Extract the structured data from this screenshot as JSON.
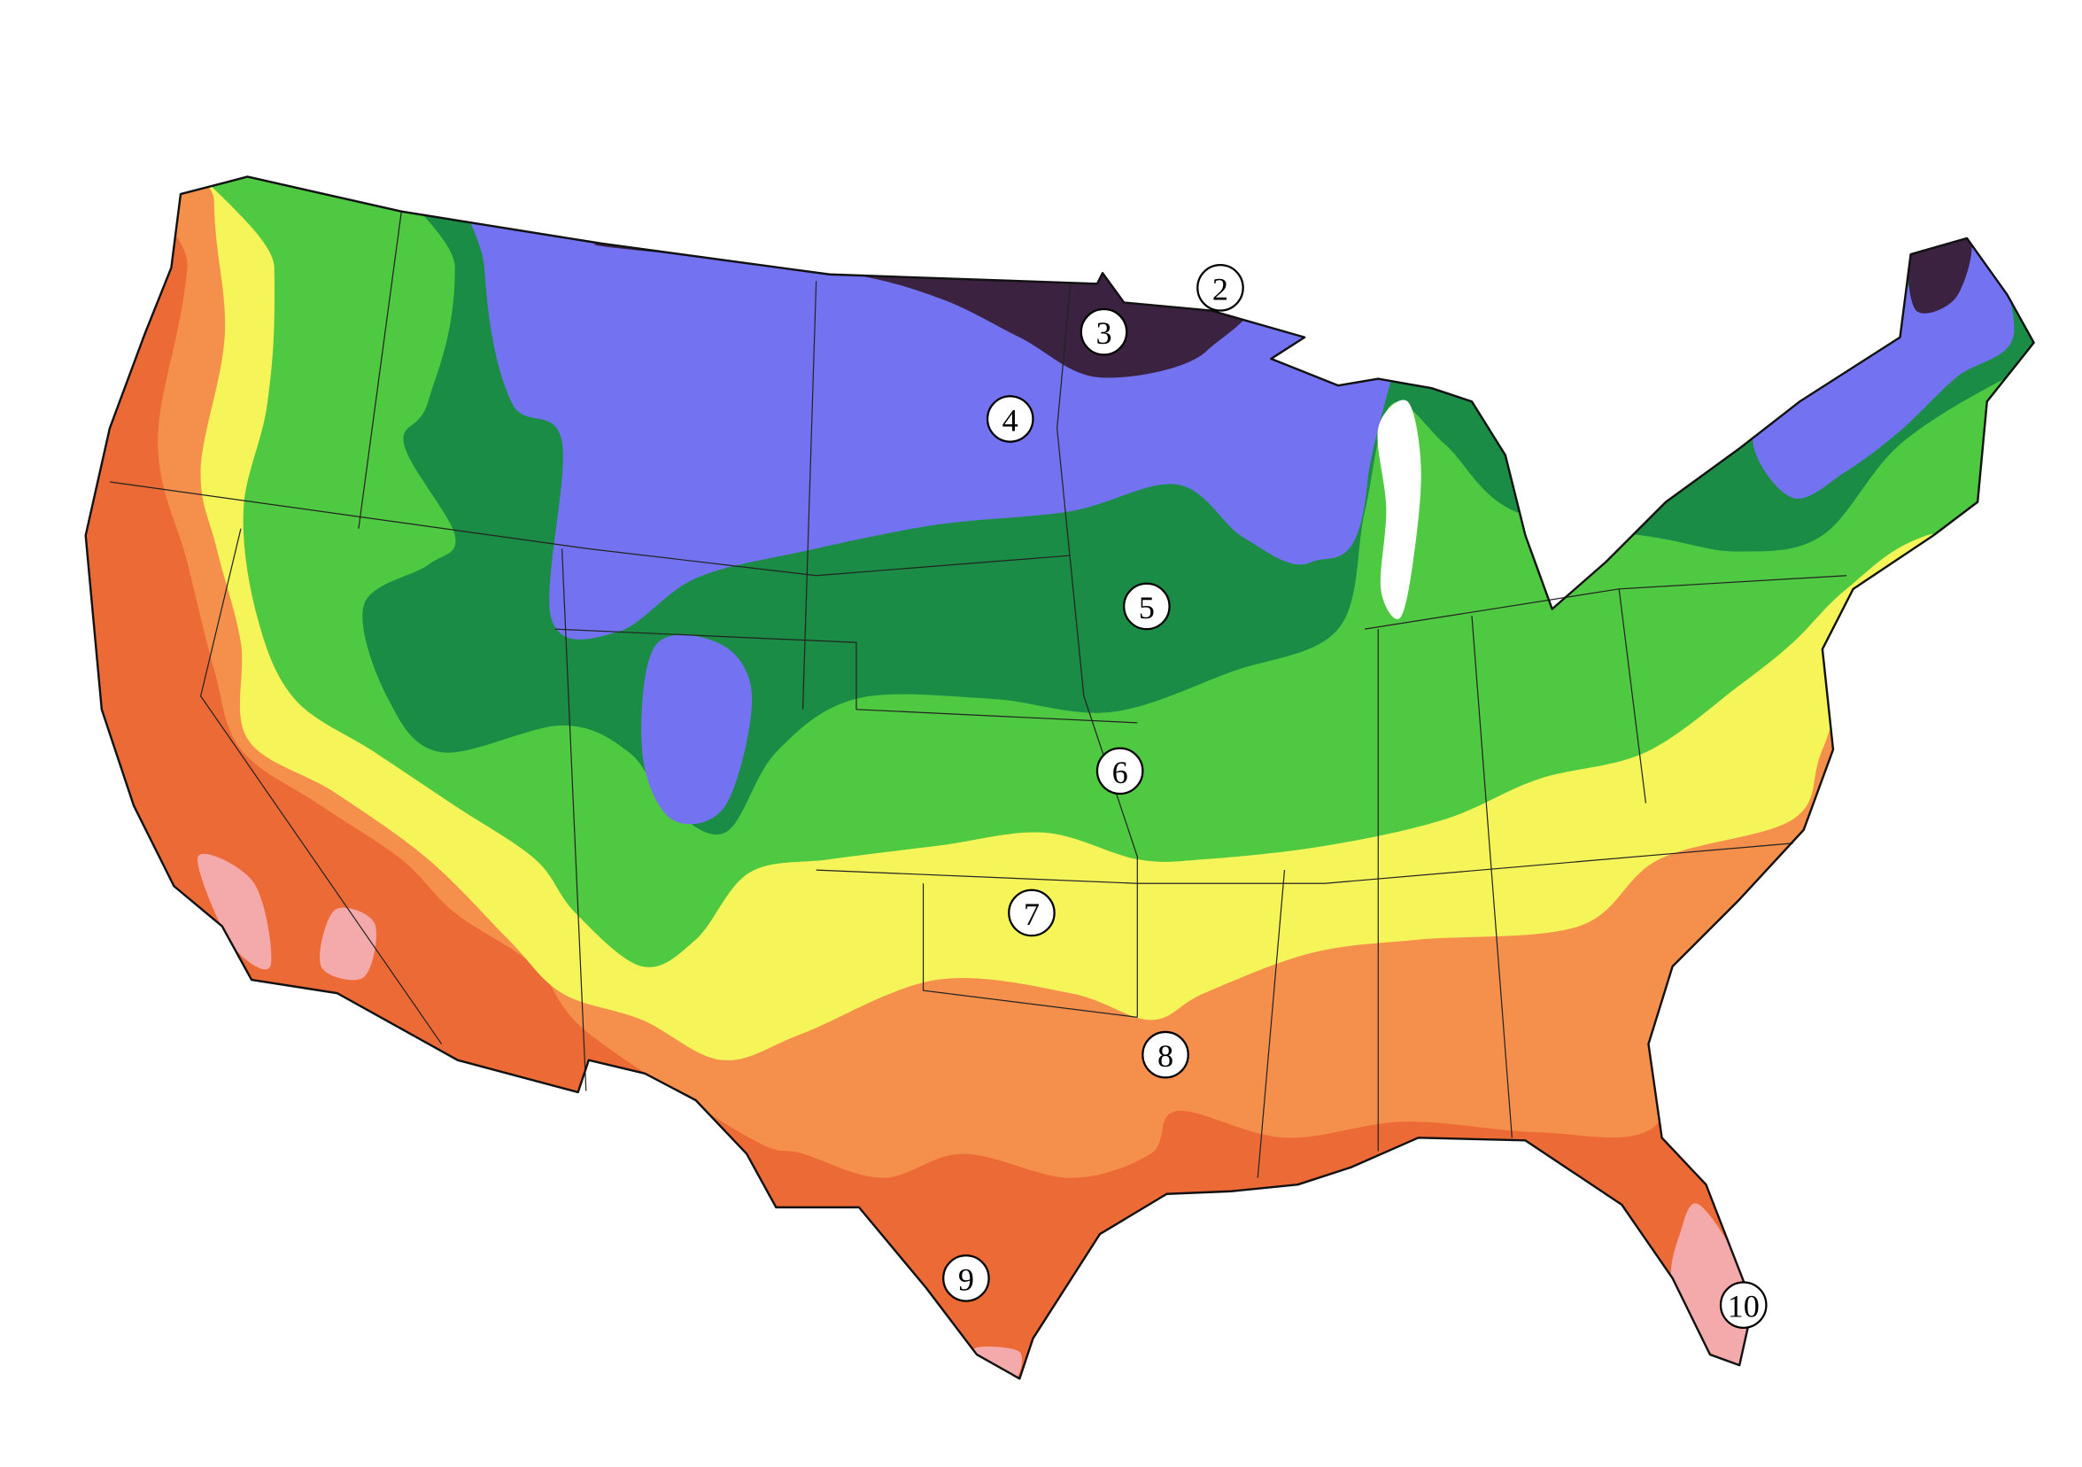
{
  "zone_labels": [
    "2",
    "3",
    "4",
    "5",
    "6",
    "7",
    "8",
    "9",
    "10"
  ]
}
